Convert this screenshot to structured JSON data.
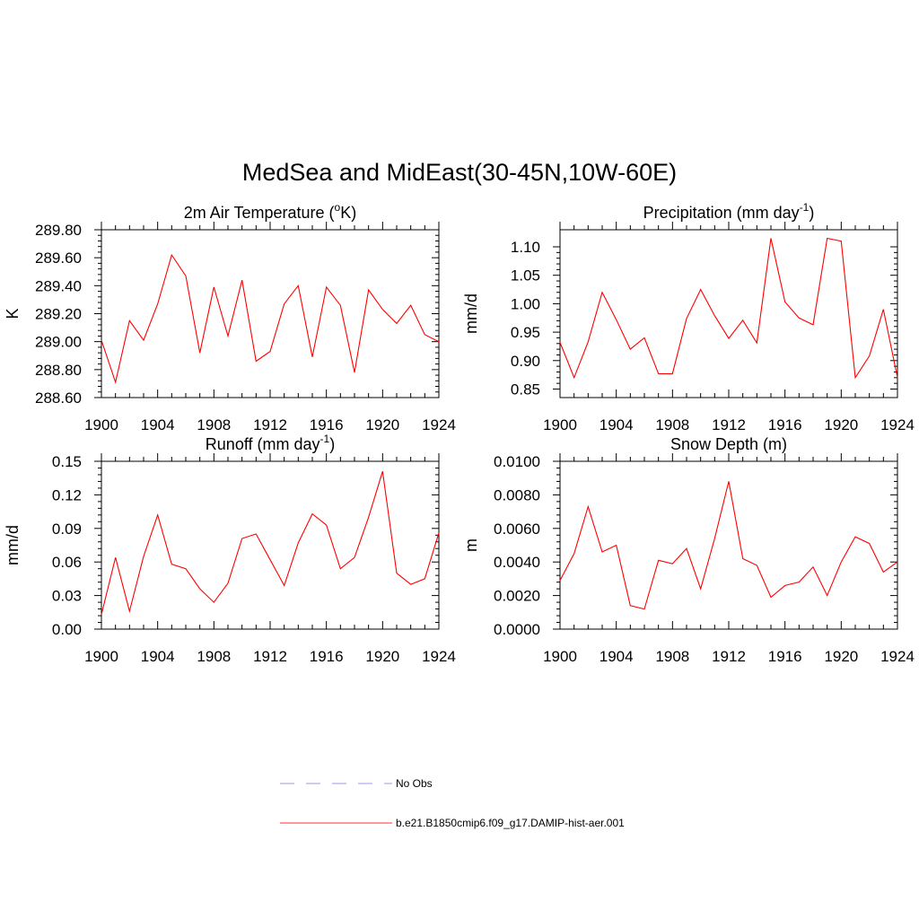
{
  "title": "MedSea and MidEast(30-45N,10W-60E)",
  "legend": {
    "placement": "bottom-center",
    "entries": [
      {
        "label": "No Obs",
        "color": "#9999ee",
        "style": "dashed"
      },
      {
        "label": "b.e21.B1850cmip6.f09_g17.DAMIP-hist-aer.001",
        "color": "#ff3333",
        "style": "solid"
      }
    ]
  },
  "chart_data": [
    {
      "type": "line",
      "title": "2m Air Temperature (",
      "title_sup1": "o",
      "title_mid": "K)",
      "title_sup2": "",
      "title_end": "",
      "ylabel": "K",
      "xlim": [
        1900,
        1924
      ],
      "ylim": [
        288.6,
        289.8
      ],
      "xticks": [
        1900,
        1904,
        1908,
        1912,
        1916,
        1920,
        1924
      ],
      "yticks": [
        288.6,
        288.8,
        289.0,
        289.2,
        289.4,
        289.6,
        289.8
      ],
      "ytick_labels": [
        "288.60",
        "288.80",
        "289.00",
        "289.20",
        "289.40",
        "289.60",
        "289.80"
      ],
      "x": [
        1900,
        1901,
        1902,
        1903,
        1904,
        1905,
        1906,
        1907,
        1908,
        1909,
        1910,
        1911,
        1912,
        1913,
        1914,
        1915,
        1916,
        1917,
        1918,
        1919,
        1920,
        1921,
        1922,
        1923,
        1924
      ],
      "series": [
        {
          "color": "#ff0000",
          "values": [
            289.01,
            288.71,
            289.15,
            289.01,
            289.27,
            289.62,
            289.47,
            288.92,
            289.39,
            289.04,
            289.44,
            288.86,
            288.93,
            289.27,
            289.4,
            288.89,
            289.39,
            289.26,
            288.78,
            289.37,
            289.23,
            289.13,
            289.26,
            289.05,
            289.0
          ]
        }
      ]
    },
    {
      "type": "line",
      "title": "Precipitation (mm day",
      "title_sup1": "-1",
      "title_mid": ")",
      "title_sup2": "",
      "title_end": "",
      "ylabel": "mm/d",
      "xlim": [
        1900,
        1924
      ],
      "ylim": [
        0.835,
        1.13
      ],
      "xticks": [
        1900,
        1904,
        1908,
        1912,
        1916,
        1920,
        1924
      ],
      "yticks": [
        0.85,
        0.9,
        0.95,
        1.0,
        1.05,
        1.1
      ],
      "ytick_labels": [
        "0.85",
        "0.90",
        "0.95",
        "1.00",
        "1.05",
        "1.10"
      ],
      "x": [
        1900,
        1901,
        1902,
        1903,
        1904,
        1905,
        1906,
        1907,
        1908,
        1909,
        1910,
        1911,
        1912,
        1913,
        1914,
        1915,
        1916,
        1917,
        1918,
        1919,
        1920,
        1921,
        1922,
        1923,
        1924
      ],
      "series": [
        {
          "color": "#ff0000",
          "values": [
            0.932,
            0.87,
            0.933,
            1.02,
            0.972,
            0.92,
            0.94,
            0.877,
            0.877,
            0.974,
            1.025,
            0.979,
            0.939,
            0.971,
            0.931,
            1.115,
            1.003,
            0.975,
            0.963,
            1.115,
            1.11,
            0.87,
            0.908,
            0.99,
            0.87
          ]
        }
      ]
    },
    {
      "type": "line",
      "title": "Runoff (mm day",
      "title_sup1": "-1",
      "title_mid": ")",
      "title_sup2": "",
      "title_end": "",
      "ylabel": "mm/d",
      "xlim": [
        1900,
        1924
      ],
      "ylim": [
        0,
        0.15
      ],
      "xticks": [
        1900,
        1904,
        1908,
        1912,
        1916,
        1920,
        1924
      ],
      "yticks": [
        0,
        0.03,
        0.06,
        0.09,
        0.12,
        0.15
      ],
      "ytick_labels": [
        "0.00",
        "0.03",
        "0.06",
        "0.09",
        "0.12",
        "0.15"
      ],
      "x": [
        1900,
        1901,
        1902,
        1903,
        1904,
        1905,
        1906,
        1907,
        1908,
        1909,
        1910,
        1911,
        1912,
        1913,
        1914,
        1915,
        1916,
        1917,
        1918,
        1919,
        1920,
        1921,
        1922,
        1923,
        1924
      ],
      "series": [
        {
          "color": "#ff0000",
          "values": [
            0.013,
            0.064,
            0.016,
            0.065,
            0.102,
            0.058,
            0.054,
            0.036,
            0.024,
            0.041,
            0.081,
            0.085,
            0.062,
            0.039,
            0.077,
            0.103,
            0.093,
            0.054,
            0.064,
            0.1,
            0.141,
            0.05,
            0.04,
            0.045,
            0.086
          ]
        }
      ]
    },
    {
      "type": "line",
      "title": "Snow Depth (m)",
      "title_sup1": "",
      "title_mid": "",
      "title_sup2": "",
      "title_end": "",
      "ylabel": "m",
      "xlim": [
        1900,
        1924
      ],
      "ylim": [
        0,
        0.01
      ],
      "xticks": [
        1900,
        1904,
        1908,
        1912,
        1916,
        1920,
        1924
      ],
      "yticks": [
        0,
        0.002,
        0.004,
        0.006,
        0.008,
        0.01
      ],
      "ytick_labels": [
        "0.0000",
        "0.0020",
        "0.0040",
        "0.0060",
        "0.0080",
        "0.0100"
      ],
      "x": [
        1900,
        1901,
        1902,
        1903,
        1904,
        1905,
        1906,
        1907,
        1908,
        1909,
        1910,
        1911,
        1912,
        1913,
        1914,
        1915,
        1916,
        1917,
        1918,
        1919,
        1920,
        1921,
        1922,
        1923,
        1924
      ],
      "series": [
        {
          "color": "#ff0000",
          "values": [
            0.0029,
            0.0045,
            0.0073,
            0.0046,
            0.005,
            0.0014,
            0.0012,
            0.0041,
            0.0039,
            0.0048,
            0.0024,
            0.0054,
            0.0088,
            0.0042,
            0.0038,
            0.0019,
            0.0026,
            0.0028,
            0.0037,
            0.002,
            0.004,
            0.0055,
            0.0051,
            0.0034,
            0.004
          ]
        }
      ]
    }
  ]
}
